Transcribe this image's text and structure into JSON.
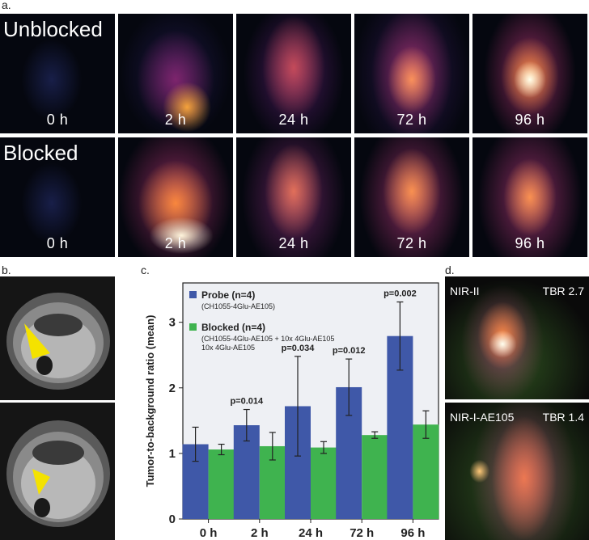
{
  "panels": {
    "a": "a.",
    "b": "b.",
    "c": "c.",
    "d": "d."
  },
  "panel_a": {
    "rows": [
      {
        "label": "Unblocked",
        "times": [
          "0 h",
          "2 h",
          "24 h",
          "72 h",
          "96 h"
        ]
      },
      {
        "label": "Blocked",
        "times": [
          "0 h",
          "2 h",
          "24 h",
          "72 h",
          "96 h"
        ]
      }
    ]
  },
  "panel_d": {
    "top": {
      "label": "NIR-II",
      "tbr": "TBR 2.7"
    },
    "bottom": {
      "label": "NIR-I-AE105",
      "tbr": "TBR 1.4"
    }
  },
  "chart_data": {
    "type": "bar",
    "ylabel": "Tumor-to-background ratio (mean)",
    "xlabel": "",
    "categories": [
      "0 h",
      "2 h",
      "24 h",
      "72 h",
      "96 h"
    ],
    "ylim": [
      0,
      3.6
    ],
    "yticks": [
      "0",
      "1",
      "2",
      "3"
    ],
    "series": [
      {
        "name": "Probe (n=4)",
        "subtitle": "(CH1055-4Glu-AE105)",
        "color": "#3f58a8",
        "values": [
          1.14,
          1.43,
          1.72,
          2.01,
          2.79
        ],
        "errors": [
          0.26,
          0.24,
          0.76,
          0.43,
          0.52
        ]
      },
      {
        "name": "Blocked (n=4)",
        "subtitle": "(CH1055-4Glu-AE105 + 10x 4Glu-AE105",
        "color": "#3fb34f",
        "values": [
          1.06,
          1.11,
          1.09,
          1.28,
          1.44
        ],
        "errors": [
          0.08,
          0.21,
          0.09,
          0.05,
          0.21
        ]
      }
    ],
    "annotations": [
      "",
      "p=0.014",
      "p=0.034",
      "p=0.012",
      "p=0.002"
    ]
  }
}
